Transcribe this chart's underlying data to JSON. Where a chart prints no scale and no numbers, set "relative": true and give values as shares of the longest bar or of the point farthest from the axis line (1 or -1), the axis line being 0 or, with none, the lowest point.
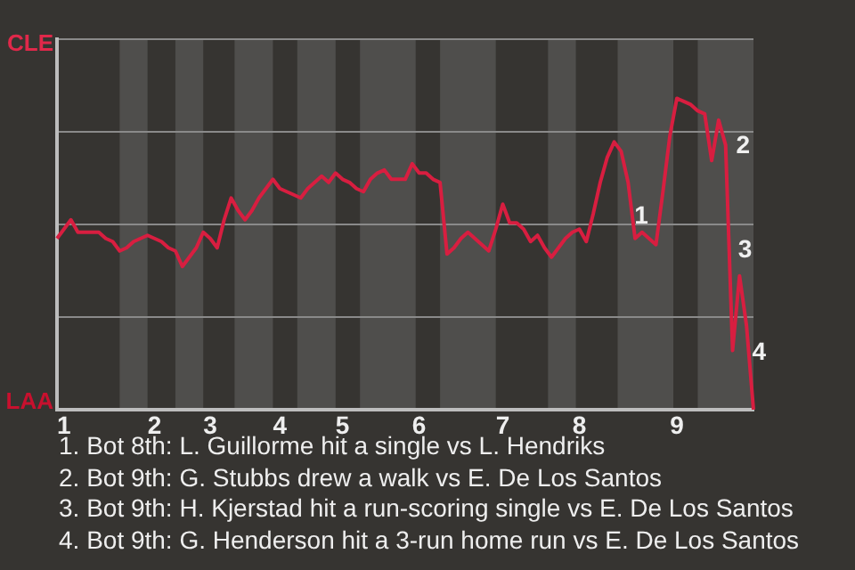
{
  "chart_data": {
    "type": "line",
    "relative": true,
    "categories": [
      null,
      "1",
      null,
      null,
      null,
      null,
      null,
      null,
      null,
      null,
      null,
      null,
      null,
      null,
      "2",
      null,
      null,
      null,
      null,
      null,
      null,
      null,
      "3",
      null,
      null,
      null,
      null,
      null,
      null,
      null,
      null,
      null,
      "4",
      null,
      null,
      null,
      null,
      null,
      null,
      null,
      null,
      "5",
      null,
      null,
      null,
      null,
      null,
      null,
      null,
      null,
      null,
      null,
      "6",
      null,
      null,
      null,
      null,
      null,
      null,
      null,
      null,
      null,
      null,
      null,
      "7",
      null,
      null,
      null,
      null,
      null,
      null,
      null,
      null,
      null,
      null,
      "8",
      null,
      null,
      null,
      null,
      null,
      null,
      null,
      null,
      null,
      null,
      null,
      null,
      null,
      "9",
      null,
      null,
      null,
      null,
      null,
      null,
      null,
      null,
      null,
      null,
      null
    ],
    "series": [
      {
        "color": "#d81e40",
        "values": [
          0.55,
          0.58,
          0.61,
          0.57,
          0.57,
          0.57,
          0.57,
          0.55,
          0.54,
          0.51,
          0.52,
          0.54,
          0.55,
          0.56,
          0.55,
          0.54,
          0.52,
          0.51,
          0.46,
          0.49,
          0.52,
          0.57,
          0.55,
          0.52,
          0.61,
          0.68,
          0.64,
          0.61,
          0.64,
          0.68,
          0.71,
          0.74,
          0.71,
          0.7,
          0.69,
          0.68,
          0.71,
          0.73,
          0.75,
          0.73,
          0.76,
          0.74,
          0.73,
          0.71,
          0.7,
          0.74,
          0.76,
          0.77,
          0.74,
          0.74,
          0.74,
          0.79,
          0.76,
          0.76,
          0.74,
          0.73,
          0.5,
          0.52,
          0.55,
          0.57,
          0.55,
          0.53,
          0.51,
          0.58,
          0.66,
          0.6,
          0.6,
          0.58,
          0.54,
          0.56,
          0.52,
          0.49,
          0.52,
          0.55,
          0.57,
          0.58,
          0.54,
          0.63,
          0.73,
          0.81,
          0.86,
          0.83,
          0.73,
          0.55,
          0.57,
          0.55,
          0.53,
          0.7,
          0.88,
          1,
          0.99,
          0.98,
          0.96,
          0.95,
          0.8,
          0.93,
          0.85,
          0.19,
          0.43,
          0.27,
          0
        ]
      }
    ],
    "grid": "y",
    "marker": "none",
    "annotations": [
      "CLE",
      "LAA",
      "1",
      "2",
      "3",
      "4",
      "1. Bot 8th: L. Guillorme hit a single vs L. Hendriks",
      "2. Bot 9th: G. Stubbs drew a walk vs E. De Los Santos",
      "3. Bot 9th: H. Kjerstad hit a run-scoring single vs E. De Los Santos",
      "4. Bot 9th: G. Henderson hit a 3-run home run vs E. De Los Santos"
    ]
  }
}
